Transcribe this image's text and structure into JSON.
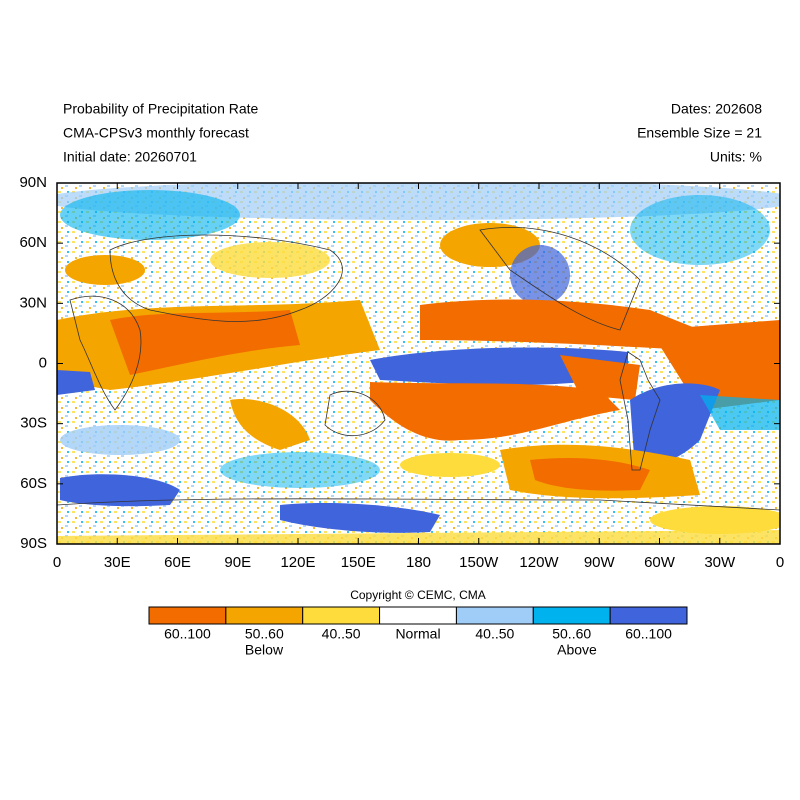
{
  "header": {
    "left": [
      "Probability of Precipitation Rate",
      "CMA-CPSv3 monthly forecast",
      "Initial date: 20260701"
    ],
    "right": [
      "Dates: 202608",
      "Ensemble Size = 21",
      "Units: %"
    ]
  },
  "map": {
    "lat_labels": [
      "90N",
      "60N",
      "30N",
      "0",
      "30S",
      "60S",
      "90S"
    ],
    "lon_labels": [
      "0",
      "30E",
      "60E",
      "90E",
      "120E",
      "150E",
      "180",
      "150W",
      "120W",
      "90W",
      "60W",
      "30W",
      "0"
    ]
  },
  "copyright": "Copyright © CEMC, CMA",
  "legend": {
    "items": [
      {
        "label": "60..100",
        "color": "#f26c00"
      },
      {
        "label": "50..60",
        "color": "#f5a500"
      },
      {
        "label": "40..50",
        "color": "#fddc3c"
      },
      {
        "label": "Normal",
        "color": "#ffffff"
      },
      {
        "label": "40..50",
        "color": "#9fcdf8"
      },
      {
        "label": "50..60",
        "color": "#00b2ee"
      },
      {
        "label": "60..100",
        "color": "#3f64dc"
      }
    ],
    "groups": [
      "Below",
      "Above"
    ]
  }
}
